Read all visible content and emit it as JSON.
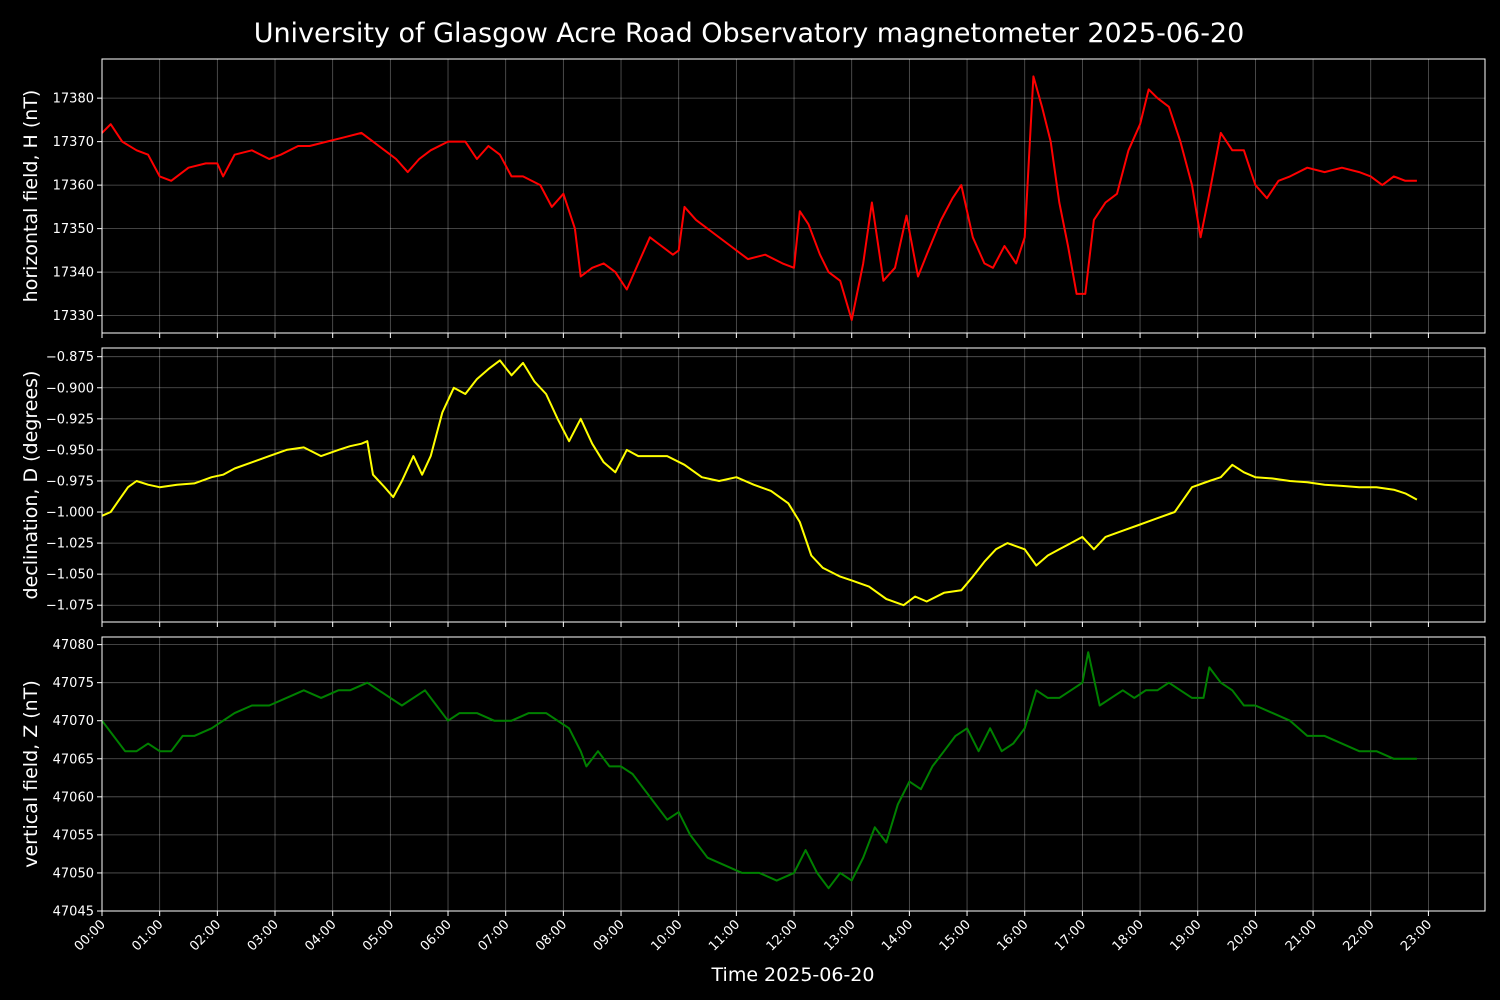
{
  "chart_data": {
    "title": "University of Glasgow Acre Road Observatory magnetometer 2025-06-20",
    "xlabel": "Time 2025-06-20",
    "type": "line",
    "x_ticks": [
      "00:00",
      "01:00",
      "02:00",
      "03:00",
      "04:00",
      "05:00",
      "06:00",
      "07:00",
      "08:00",
      "09:00",
      "10:00",
      "11:00",
      "12:00",
      "13:00",
      "14:00",
      "15:00",
      "16:00",
      "17:00",
      "18:00",
      "19:00",
      "20:00",
      "21:00",
      "22:00",
      "23:00"
    ],
    "x_unit": "hours",
    "xlim": [
      0,
      24
    ],
    "grid": true,
    "background": "#000000",
    "panels": [
      {
        "ylabel": "horizontal field, H (nT)",
        "color": "#ff0000",
        "ylim": [
          17326,
          17389
        ],
        "yticks": [
          17330,
          17340,
          17350,
          17360,
          17370,
          17380
        ],
        "ytick_labels": [
          "17330",
          "17340",
          "17350",
          "17360",
          "17370",
          "17380"
        ],
        "x": [
          0,
          0.15,
          0.35,
          0.6,
          0.8,
          1.0,
          1.2,
          1.5,
          1.8,
          2.0,
          2.1,
          2.3,
          2.6,
          2.9,
          3.1,
          3.4,
          3.6,
          3.9,
          4.2,
          4.5,
          4.7,
          4.9,
          5.1,
          5.3,
          5.5,
          5.7,
          6.0,
          6.3,
          6.5,
          6.7,
          6.9,
          7.1,
          7.3,
          7.6,
          7.8,
          8.0,
          8.2,
          8.3,
          8.5,
          8.7,
          8.9,
          9.1,
          9.3,
          9.5,
          9.7,
          9.9,
          10.0,
          10.1,
          10.3,
          10.6,
          10.9,
          11.2,
          11.5,
          11.8,
          12.0,
          12.1,
          12.25,
          12.45,
          12.6,
          12.8,
          13.0,
          13.2,
          13.35,
          13.55,
          13.75,
          13.95,
          14.15,
          14.3,
          14.55,
          14.75,
          14.9,
          15.1,
          15.3,
          15.45,
          15.65,
          15.85,
          16.0,
          16.15,
          16.3,
          16.45,
          16.6,
          16.75,
          16.9,
          17.05,
          17.2,
          17.4,
          17.6,
          17.8,
          18.0,
          18.15,
          18.3,
          18.5,
          18.7,
          18.9,
          19.05,
          19.2,
          19.4,
          19.6,
          19.8,
          20.0,
          20.2,
          20.4,
          20.6,
          20.9,
          21.2,
          21.5,
          21.8,
          22.0,
          22.2,
          22.4,
          22.6,
          22.8
        ],
        "y": [
          17372,
          17374,
          17370,
          17368,
          17367,
          17362,
          17361,
          17364,
          17365,
          17365,
          17362,
          17367,
          17368,
          17366,
          17367,
          17369,
          17369,
          17370,
          17371,
          17372,
          17370,
          17368,
          17366,
          17363,
          17366,
          17368,
          17370,
          17370,
          17366,
          17369,
          17367,
          17362,
          17362,
          17360,
          17355,
          17358,
          17350,
          17339,
          17341,
          17342,
          17340,
          17336,
          17342,
          17348,
          17346,
          17344,
          17345,
          17355,
          17352,
          17349,
          17346,
          17343,
          17344,
          17342,
          17341,
          17354,
          17351,
          17344,
          17340,
          17338,
          17329,
          17342,
          17356,
          17338,
          17341,
          17353,
          17339,
          17344,
          17352,
          17357,
          17360,
          17348,
          17342,
          17341,
          17346,
          17342,
          17348,
          17385,
          17378,
          17370,
          17356,
          17346,
          17335,
          17335,
          17352,
          17356,
          17358,
          17368,
          17374,
          17382,
          17380,
          17378,
          17370,
          17360,
          17348,
          17358,
          17372,
          17368,
          17368,
          17360,
          17357,
          17361,
          17362,
          17364,
          17363,
          17364,
          17363,
          17362,
          17360,
          17362,
          17361,
          17361
        ]
      },
      {
        "ylabel": "declination, D (degrees)",
        "color": "#ffff00",
        "ylim": [
          -1.0885,
          -0.868
        ],
        "yticks": [
          -1.075,
          -1.05,
          -1.025,
          -1.0,
          -0.975,
          -0.95,
          -0.925,
          -0.9,
          -0.875
        ],
        "ytick_labels": [
          "−1.075",
          "−1.050",
          "−1.025",
          "−1.000",
          "−0.975",
          "−0.950",
          "−0.925",
          "−0.900",
          "−0.875"
        ],
        "x": [
          0,
          0.15,
          0.3,
          0.45,
          0.6,
          0.8,
          1.0,
          1.3,
          1.6,
          1.9,
          2.1,
          2.3,
          2.6,
          2.9,
          3.2,
          3.5,
          3.8,
          4.1,
          4.3,
          4.5,
          4.6,
          4.7,
          4.9,
          5.05,
          5.2,
          5.4,
          5.55,
          5.7,
          5.9,
          6.1,
          6.3,
          6.5,
          6.7,
          6.9,
          7.1,
          7.3,
          7.5,
          7.7,
          7.9,
          8.1,
          8.3,
          8.5,
          8.7,
          8.9,
          9.1,
          9.3,
          9.5,
          9.8,
          10.1,
          10.4,
          10.7,
          11.0,
          11.3,
          11.6,
          11.9,
          12.1,
          12.3,
          12.5,
          12.8,
          13.0,
          13.3,
          13.6,
          13.9,
          14.1,
          14.3,
          14.6,
          14.9,
          15.1,
          15.3,
          15.5,
          15.7,
          16.0,
          16.2,
          16.4,
          16.6,
          16.8,
          17.0,
          17.2,
          17.4,
          17.7,
          18.0,
          18.3,
          18.6,
          18.9,
          19.2,
          19.4,
          19.6,
          19.8,
          20.0,
          20.3,
          20.6,
          20.9,
          21.2,
          21.5,
          21.8,
          22.1,
          22.4,
          22.6,
          22.8
        ],
        "y": [
          -1.003,
          -1.0,
          -0.99,
          -0.98,
          -0.975,
          -0.978,
          -0.98,
          -0.978,
          -0.977,
          -0.972,
          -0.97,
          -0.965,
          -0.96,
          -0.955,
          -0.95,
          -0.948,
          -0.955,
          -0.95,
          -0.947,
          -0.945,
          -0.943,
          -0.97,
          -0.98,
          -0.988,
          -0.975,
          -0.955,
          -0.97,
          -0.955,
          -0.92,
          -0.9,
          -0.905,
          -0.893,
          -0.885,
          -0.878,
          -0.89,
          -0.88,
          -0.895,
          -0.905,
          -0.925,
          -0.943,
          -0.925,
          -0.945,
          -0.96,
          -0.968,
          -0.95,
          -0.955,
          -0.955,
          -0.955,
          -0.962,
          -0.972,
          -0.975,
          -0.972,
          -0.978,
          -0.983,
          -0.993,
          -1.008,
          -1.035,
          -1.045,
          -1.052,
          -1.055,
          -1.06,
          -1.07,
          -1.075,
          -1.068,
          -1.072,
          -1.065,
          -1.063,
          -1.052,
          -1.04,
          -1.03,
          -1.025,
          -1.03,
          -1.043,
          -1.035,
          -1.03,
          -1.025,
          -1.02,
          -1.03,
          -1.02,
          -1.015,
          -1.01,
          -1.005,
          -1.0,
          -0.98,
          -0.975,
          -0.972,
          -0.962,
          -0.968,
          -0.972,
          -0.973,
          -0.975,
          -0.976,
          -0.978,
          -0.979,
          -0.98,
          -0.98,
          -0.982,
          -0.985,
          -0.99
        ]
      },
      {
        "ylabel": "vertical field, Z (nT)",
        "color": "#008000",
        "ylim": [
          47045,
          47081
        ],
        "yticks": [
          47045,
          47050,
          47055,
          47060,
          47065,
          47070,
          47075,
          47080
        ],
        "ytick_labels": [
          "47045",
          "47050",
          "47055",
          "47060",
          "47065",
          "47070",
          "47075",
          "47080"
        ],
        "x": [
          0,
          0.2,
          0.4,
          0.6,
          0.8,
          1.0,
          1.2,
          1.4,
          1.6,
          1.9,
          2.1,
          2.3,
          2.6,
          2.9,
          3.2,
          3.5,
          3.8,
          4.1,
          4.3,
          4.6,
          4.8,
          5.0,
          5.2,
          5.4,
          5.6,
          5.8,
          6.0,
          6.2,
          6.5,
          6.8,
          7.1,
          7.4,
          7.7,
          7.9,
          8.1,
          8.3,
          8.4,
          8.6,
          8.8,
          9.0,
          9.2,
          9.4,
          9.6,
          9.8,
          10.0,
          10.2,
          10.5,
          10.8,
          11.1,
          11.4,
          11.7,
          12.0,
          12.2,
          12.4,
          12.6,
          12.8,
          13.0,
          13.2,
          13.4,
          13.6,
          13.8,
          14.0,
          14.2,
          14.4,
          14.6,
          14.8,
          15.0,
          15.2,
          15.4,
          15.6,
          15.8,
          16.0,
          16.2,
          16.4,
          16.6,
          16.8,
          17.0,
          17.1,
          17.3,
          17.5,
          17.7,
          17.9,
          18.1,
          18.3,
          18.5,
          18.7,
          18.9,
          19.1,
          19.2,
          19.4,
          19.6,
          19.8,
          20.0,
          20.3,
          20.6,
          20.9,
          21.2,
          21.5,
          21.8,
          22.1,
          22.4,
          22.6,
          22.8
        ],
        "y": [
          47070,
          47068,
          47066,
          47066,
          47067,
          47066,
          47066,
          47068,
          47068,
          47069,
          47070,
          47071,
          47072,
          47072,
          47073,
          47074,
          47073,
          47074,
          47074,
          47075,
          47074,
          47073,
          47072,
          47073,
          47074,
          47072,
          47070,
          47071,
          47071,
          47070,
          47070,
          47071,
          47071,
          47070,
          47069,
          47066,
          47064,
          47066,
          47064,
          47064,
          47063,
          47061,
          47059,
          47057,
          47058,
          47055,
          47052,
          47051,
          47050,
          47050,
          47049,
          47050,
          47053,
          47050,
          47048,
          47050,
          47049,
          47052,
          47056,
          47054,
          47059,
          47062,
          47061,
          47064,
          47066,
          47068,
          47069,
          47066,
          47069,
          47066,
          47067,
          47069,
          47074,
          47073,
          47073,
          47074,
          47075,
          47079,
          47072,
          47073,
          47074,
          47073,
          47074,
          47074,
          47075,
          47074,
          47073,
          47073,
          47077,
          47075,
          47074,
          47072,
          47072,
          47071,
          47070,
          47068,
          47068,
          47067,
          47066,
          47066,
          47065,
          47065,
          47065
        ]
      }
    ]
  }
}
